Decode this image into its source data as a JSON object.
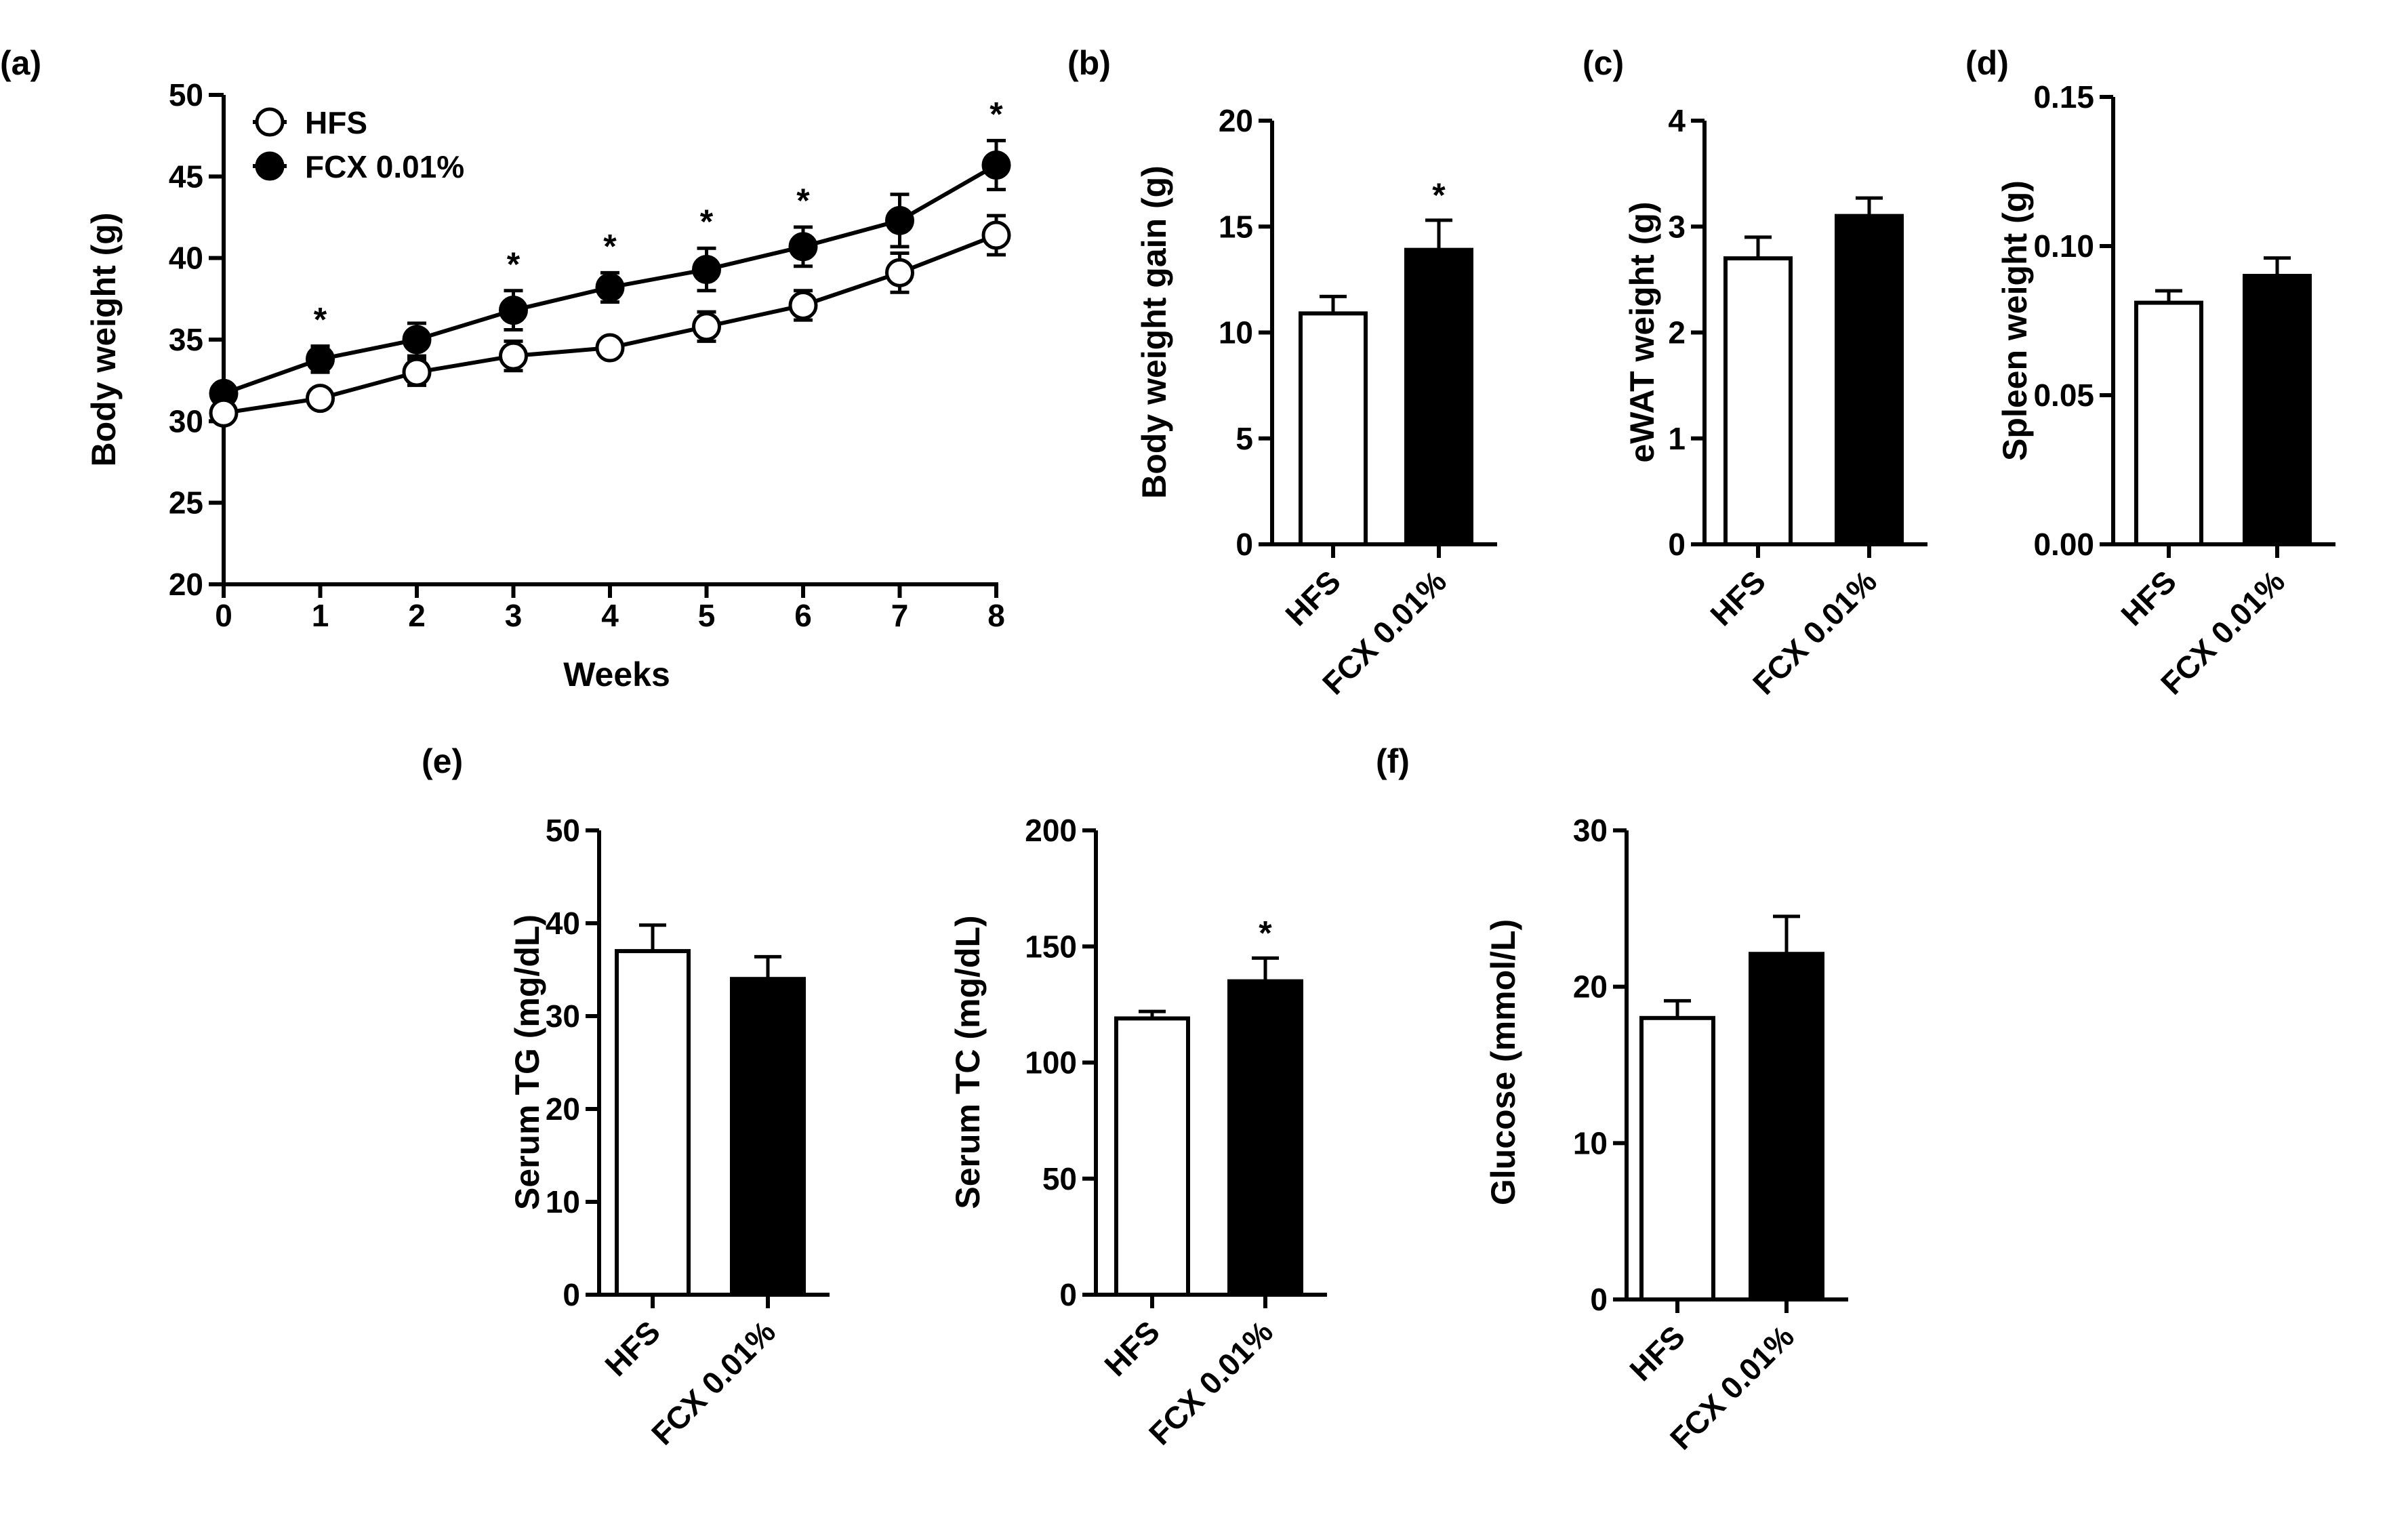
{
  "colors": {
    "hfs": "#ffffff",
    "fcx": "#000000",
    "axis": "#000000"
  },
  "chart_data": [
    {
      "panel": "(a)",
      "type": "line",
      "xlabel": "Weeks",
      "ylabel": "Body weight (g)",
      "xlim": [
        0,
        8
      ],
      "ylim": [
        20,
        50
      ],
      "x_ticks": [
        "0",
        "1",
        "2",
        "3",
        "4",
        "5",
        "6",
        "7",
        "8"
      ],
      "y_ticks": [
        "20",
        "25",
        "30",
        "35",
        "40",
        "45",
        "50"
      ],
      "x": [
        0,
        1,
        2,
        3,
        4,
        5,
        6,
        7,
        8
      ],
      "series": [
        {
          "name": "HFS",
          "marker": "open-circle",
          "values": [
            30.5,
            31.4,
            33.0,
            34.0,
            34.5,
            35.8,
            37.1,
            39.1,
            41.4
          ],
          "errors": [
            0.4,
            0.4,
            0.8,
            0.9,
            0.4,
            0.9,
            0.9,
            1.2,
            1.2
          ]
        },
        {
          "name": "FCX 0.01%",
          "marker": "filled-circle",
          "values": [
            31.7,
            33.8,
            35.0,
            36.8,
            38.2,
            39.3,
            40.7,
            42.3,
            45.7
          ],
          "errors": [
            0.4,
            0.8,
            1.0,
            1.2,
            0.9,
            1.3,
            1.2,
            1.6,
            1.5
          ]
        }
      ],
      "significance": [
        {
          "x": 1,
          "mark": "*"
        },
        {
          "x": 3,
          "mark": "*"
        },
        {
          "x": 4,
          "mark": "*"
        },
        {
          "x": 5,
          "mark": "*"
        },
        {
          "x": 6,
          "mark": "*"
        },
        {
          "x": 8,
          "mark": "*"
        }
      ]
    },
    {
      "panel": "(b)",
      "type": "bar",
      "ylabel": "Body weight gain (g)",
      "ylim": [
        0,
        20
      ],
      "y_ticks": [
        "0",
        "5",
        "10",
        "15",
        "20"
      ],
      "categories": [
        "HFS",
        "FCX 0.01%"
      ],
      "values": [
        10.9,
        13.9
      ],
      "errors": [
        0.8,
        1.4
      ],
      "significance": [
        "",
        "*"
      ]
    },
    {
      "panel": "(c)",
      "type": "bar",
      "ylabel": "eWAT weight (g)",
      "ylim": [
        0,
        4
      ],
      "y_ticks": [
        "0",
        "1",
        "2",
        "3",
        "4"
      ],
      "categories": [
        "HFS",
        "FCX 0.01%"
      ],
      "values": [
        2.7,
        3.1
      ],
      "errors": [
        0.2,
        0.17
      ],
      "significance": [
        "",
        ""
      ]
    },
    {
      "panel": "(d)",
      "type": "bar",
      "ylabel": "Spleen weight (g)",
      "ylim": [
        0,
        0.15
      ],
      "y_ticks": [
        "0.00",
        "0.05",
        "0.10",
        "0.15"
      ],
      "categories": [
        "HFS",
        "FCX 0.01%"
      ],
      "values": [
        0.081,
        0.09
      ],
      "errors": [
        0.004,
        0.006
      ],
      "significance": [
        "",
        ""
      ]
    },
    {
      "panel": "(e)",
      "type": "bar",
      "ylabel": "Serum TG (mg/dL)",
      "ylim": [
        0,
        50
      ],
      "y_ticks": [
        "0",
        "10",
        "20",
        "30",
        "40",
        "50"
      ],
      "categories": [
        "HFS",
        "FCX 0.01%"
      ],
      "values": [
        37.0,
        34.0
      ],
      "errors": [
        2.8,
        2.4
      ],
      "significance": [
        "",
        ""
      ]
    },
    {
      "panel": "",
      "type": "bar",
      "ylabel": "Serum TC (mg/dL)",
      "ylim": [
        0,
        200
      ],
      "y_ticks": [
        "0",
        "50",
        "100",
        "150",
        "200"
      ],
      "categories": [
        "HFS",
        "FCX 0.01%"
      ],
      "values": [
        119,
        135
      ],
      "errors": [
        3,
        10
      ],
      "significance": [
        "",
        "*"
      ]
    },
    {
      "panel": "(f)",
      "type": "bar",
      "ylabel": "Glucose (mmol/L)",
      "ylim": [
        0,
        30
      ],
      "y_ticks": [
        "0",
        "10",
        "20",
        "30"
      ],
      "categories": [
        "HFS",
        "FCX 0.01%"
      ],
      "values": [
        18.0,
        22.1
      ],
      "errors": [
        1.1,
        2.4
      ],
      "significance": [
        "",
        ""
      ]
    }
  ]
}
